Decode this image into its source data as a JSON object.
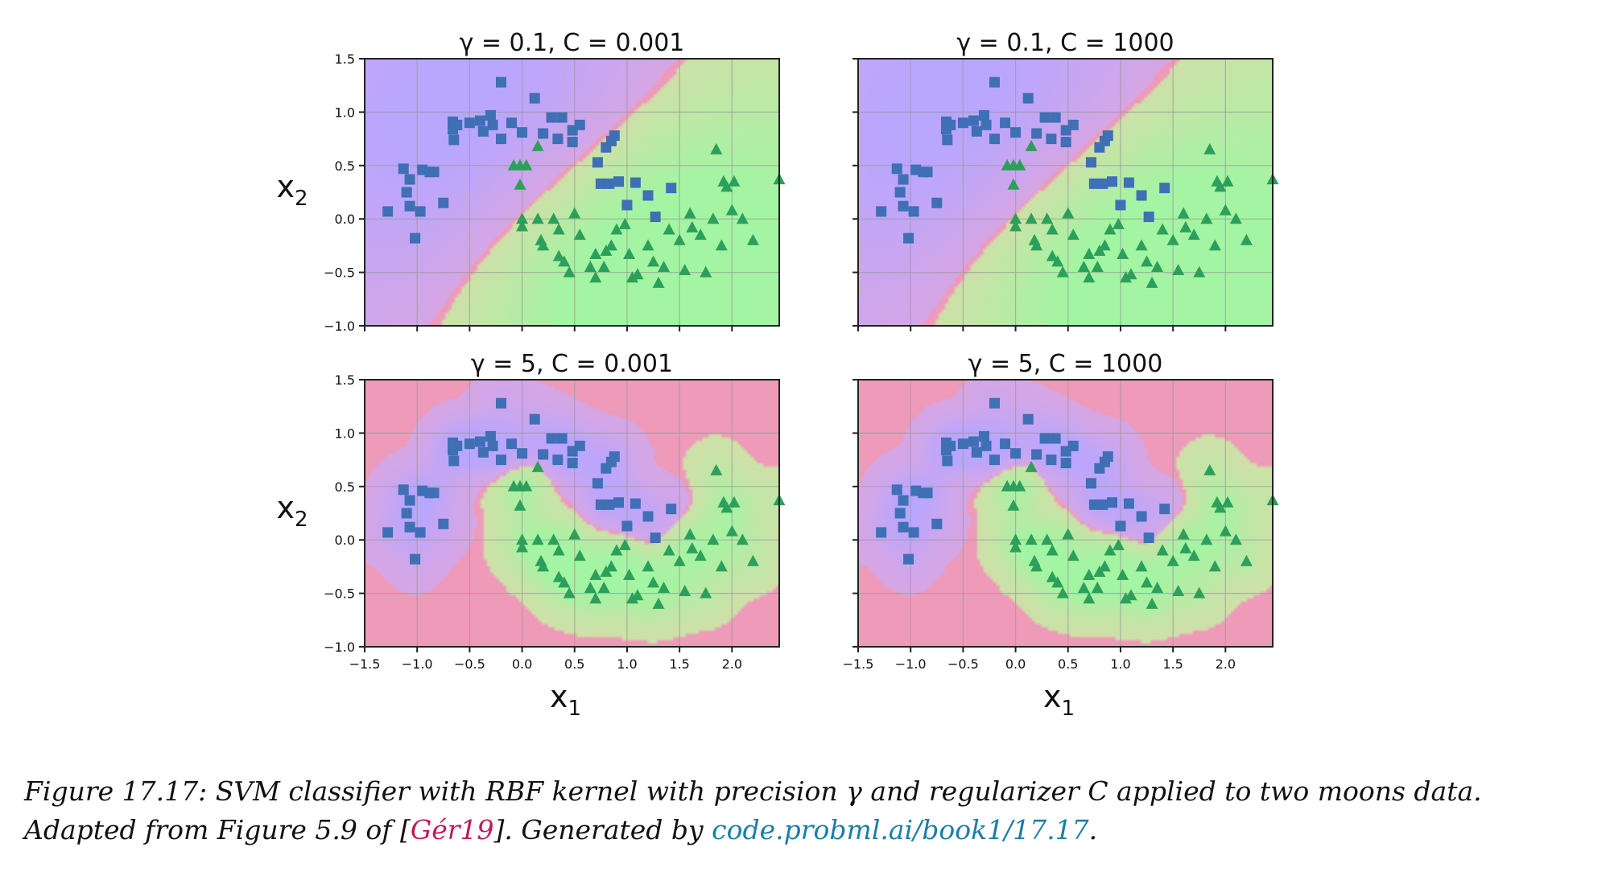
{
  "chart_data": [
    {
      "type": "scatter",
      "title": "γ = 0.1, C = 0.001",
      "gamma": 0.1,
      "kernel_intercept": 0,
      "xlim": [
        -1.5,
        2.45
      ],
      "ylim": [
        -1.0,
        1.5
      ],
      "grid": true,
      "xlabel": "",
      "ylabel": "x2",
      "show_xticklabels": false,
      "show_yticklabels": true
    },
    {
      "type": "scatter",
      "title": "γ = 0.1, C = 1000",
      "gamma": 0.1,
      "kernel_intercept": 0,
      "xlim": [
        -1.5,
        2.45
      ],
      "ylim": [
        -1.0,
        1.5
      ],
      "grid": true,
      "xlabel": "",
      "ylabel": "",
      "show_xticklabels": false,
      "show_yticklabels": false
    },
    {
      "type": "scatter",
      "title": "γ = 5, C = 0.001",
      "gamma": 5,
      "kernel_intercept": 0,
      "xlim": [
        -1.5,
        2.45
      ],
      "ylim": [
        -1.0,
        1.5
      ],
      "grid": true,
      "xlabel": "x1",
      "ylabel": "x2",
      "show_xticklabels": true,
      "show_yticklabels": true
    },
    {
      "type": "scatter",
      "title": "γ = 5, C = 1000",
      "gamma": 5,
      "kernel_intercept": 0,
      "xlim": [
        -1.5,
        2.45
      ],
      "ylim": [
        -1.0,
        1.5
      ],
      "grid": true,
      "xlabel": "x1",
      "ylabel": "",
      "show_xticklabels": true,
      "show_yticklabels": false
    }
  ],
  "shared": {
    "x_ticks": [
      -1.5,
      -1.0,
      -0.5,
      0.0,
      0.5,
      1.0,
      1.5,
      2.0
    ],
    "x_tick_labels": [
      "−1.5",
      "−1.0",
      "−0.5",
      "0.0",
      "0.5",
      "1.0",
      "1.5",
      "2.0"
    ],
    "y_ticks": [
      -1.0,
      -0.5,
      0.0,
      0.5,
      1.0,
      1.5
    ],
    "y_tick_labels": [
      "−1.0",
      "−0.5",
      "0.0",
      "0.5",
      "1.0",
      "1.5"
    ],
    "class0": {
      "marker": "square",
      "color": "#3f6fb5",
      "points": [
        [
          -1.28,
          0.07
        ],
        [
          -1.13,
          0.47
        ],
        [
          -1.1,
          0.25
        ],
        [
          -1.07,
          0.37
        ],
        [
          -1.07,
          0.12
        ],
        [
          -1.02,
          -0.18
        ],
        [
          -0.97,
          0.07
        ],
        [
          -0.95,
          0.46
        ],
        [
          -0.88,
          0.44
        ],
        [
          -0.84,
          0.44
        ],
        [
          -0.75,
          0.15
        ],
        [
          -0.66,
          0.91
        ],
        [
          -0.66,
          0.84
        ],
        [
          -0.65,
          0.74
        ],
        [
          -0.62,
          0.88
        ],
        [
          -0.5,
          0.9
        ],
        [
          -0.4,
          0.92
        ],
        [
          -0.37,
          0.82
        ],
        [
          -0.3,
          0.97
        ],
        [
          -0.28,
          0.88
        ],
        [
          -0.2,
          1.28
        ],
        [
          -0.2,
          0.75
        ],
        [
          -0.1,
          0.9
        ],
        [
          0.0,
          0.81
        ],
        [
          0.12,
          1.13
        ],
        [
          0.2,
          0.8
        ],
        [
          0.28,
          0.95
        ],
        [
          0.34,
          0.75
        ],
        [
          0.38,
          0.95
        ],
        [
          0.48,
          0.72
        ],
        [
          0.48,
          0.83
        ],
        [
          0.55,
          0.88
        ],
        [
          0.72,
          0.53
        ],
        [
          0.75,
          0.33
        ],
        [
          0.8,
          0.67
        ],
        [
          0.83,
          0.33
        ],
        [
          0.85,
          0.73
        ],
        [
          0.88,
          0.78
        ],
        [
          0.92,
          0.35
        ],
        [
          1.0,
          0.13
        ],
        [
          1.08,
          0.34
        ],
        [
          1.2,
          0.22
        ],
        [
          1.27,
          0.02
        ],
        [
          1.42,
          0.29
        ]
      ]
    },
    "class1": {
      "marker": "triangle",
      "color": "#2ca05a",
      "points": [
        [
          -0.08,
          0.5
        ],
        [
          -0.02,
          0.32
        ],
        [
          -0.02,
          0.5
        ],
        [
          0.04,
          0.5
        ],
        [
          0.15,
          0.68
        ],
        [
          0.0,
          -0.07
        ],
        [
          0.0,
          0.0
        ],
        [
          0.15,
          0.0
        ],
        [
          0.18,
          -0.2
        ],
        [
          0.2,
          -0.25
        ],
        [
          0.3,
          0.0
        ],
        [
          0.35,
          -0.1
        ],
        [
          0.35,
          -0.35
        ],
        [
          0.4,
          -0.4
        ],
        [
          0.45,
          -0.5
        ],
        [
          0.5,
          0.05
        ],
        [
          0.55,
          -0.15
        ],
        [
          0.65,
          -0.45
        ],
        [
          0.7,
          -0.33
        ],
        [
          0.7,
          -0.55
        ],
        [
          0.78,
          -0.45
        ],
        [
          0.8,
          -0.3
        ],
        [
          0.85,
          -0.25
        ],
        [
          0.9,
          -0.1
        ],
        [
          0.98,
          -0.05
        ],
        [
          1.02,
          -0.33
        ],
        [
          1.05,
          -0.55
        ],
        [
          1.1,
          -0.52
        ],
        [
          1.2,
          -0.25
        ],
        [
          1.25,
          -0.4
        ],
        [
          1.3,
          -0.6
        ],
        [
          1.35,
          -0.45
        ],
        [
          1.4,
          -0.1
        ],
        [
          1.5,
          -0.2
        ],
        [
          1.55,
          -0.48
        ],
        [
          1.6,
          0.05
        ],
        [
          1.62,
          -0.08
        ],
        [
          1.7,
          -0.15
        ],
        [
          1.75,
          -0.5
        ],
        [
          1.82,
          0.0
        ],
        [
          1.85,
          0.65
        ],
        [
          1.9,
          -0.25
        ],
        [
          1.92,
          0.35
        ],
        [
          1.95,
          0.3
        ],
        [
          2.0,
          0.08
        ],
        [
          2.02,
          0.35
        ],
        [
          2.1,
          0.0
        ],
        [
          2.2,
          -0.2
        ],
        [
          2.45,
          0.37
        ]
      ]
    },
    "region_colors": {
      "class0": [
        "#b9a6ff",
        "#d7a6e4"
      ],
      "class1": [
        "#cfe0a8",
        "#a3f5a3"
      ],
      "boundary": "#ee9ab8"
    }
  },
  "caption": {
    "part1": "Figure 17.17: SVM classifier with RBF kernel with precision γ and regularizer C applied to two moons data.",
    "part2": "Adapted from Figure 5.9 of [",
    "cite": "Gér19",
    "part3": "]. Generated by ",
    "link": "code.probml.ai/book1/17.17",
    "part4": "."
  }
}
